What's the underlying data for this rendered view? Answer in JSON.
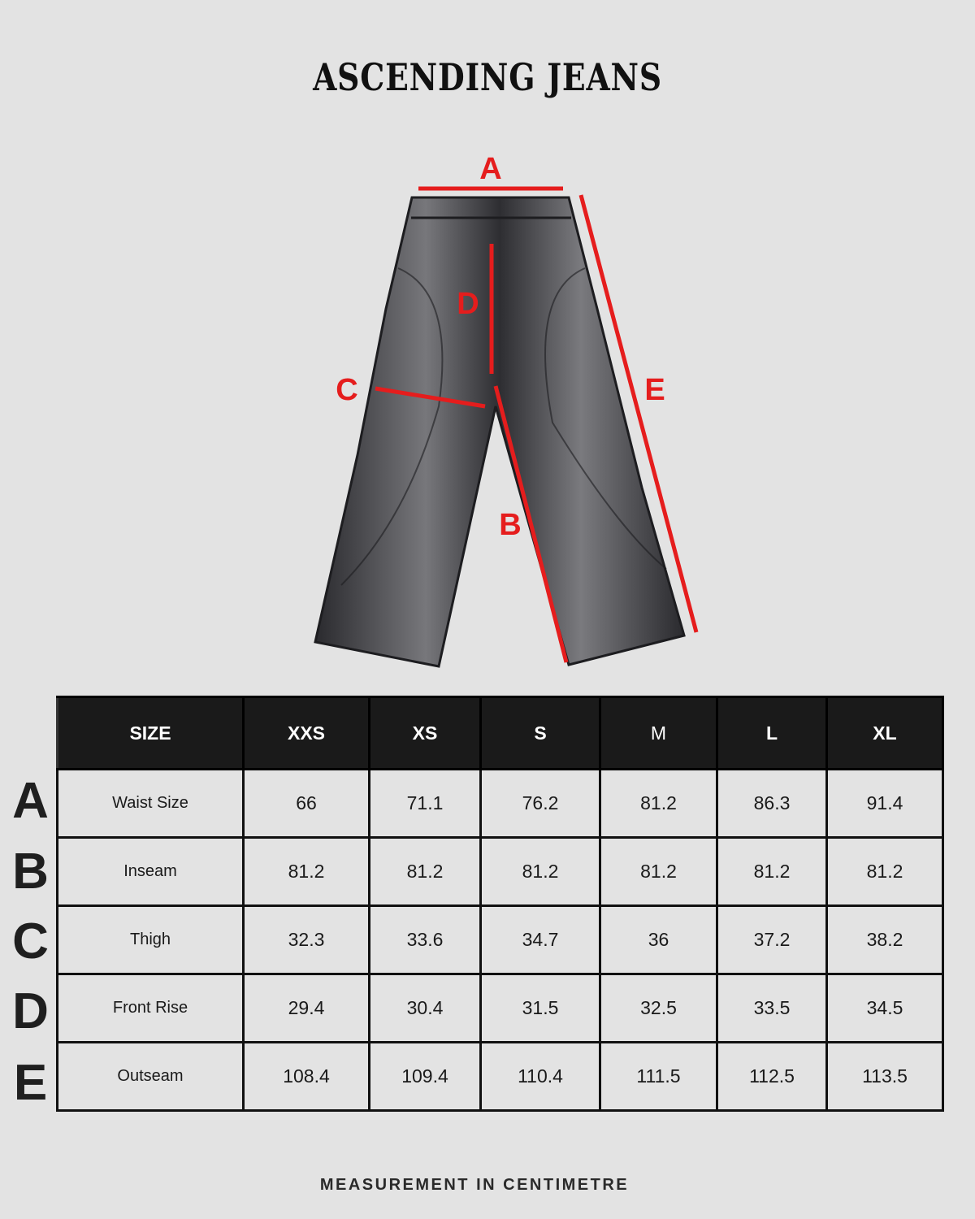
{
  "title": "ASCENDING JEANS",
  "measure_labels": [
    "A",
    "B",
    "C",
    "D",
    "E"
  ],
  "accent_color": "#e51d1d",
  "table": {
    "headers": [
      "SIZE",
      "XXS",
      "XS",
      "S",
      "M",
      "L",
      "XL"
    ],
    "rows": [
      {
        "letter": "A",
        "label": "Waist Size",
        "values": [
          "66",
          "71.1",
          "76.2",
          "81.2",
          "86.3",
          "91.4"
        ]
      },
      {
        "letter": "B",
        "label": "Inseam",
        "values": [
          "81.2",
          "81.2",
          "81.2",
          "81.2",
          "81.2",
          "81.2"
        ]
      },
      {
        "letter": "C",
        "label": "Thigh",
        "values": [
          "32.3",
          "33.6",
          "34.7",
          "36",
          "37.2",
          "38.2"
        ]
      },
      {
        "letter": "D",
        "label": "Front Rise",
        "values": [
          "29.4",
          "30.4",
          "31.5",
          "32.5",
          "33.5",
          "34.5"
        ]
      },
      {
        "letter": "E",
        "label": "Outseam",
        "values": [
          "108.4",
          "109.4",
          "110.4",
          "111.5",
          "112.5",
          "113.5"
        ]
      }
    ]
  },
  "footer": "MEASUREMENT IN CENTIMETRE"
}
